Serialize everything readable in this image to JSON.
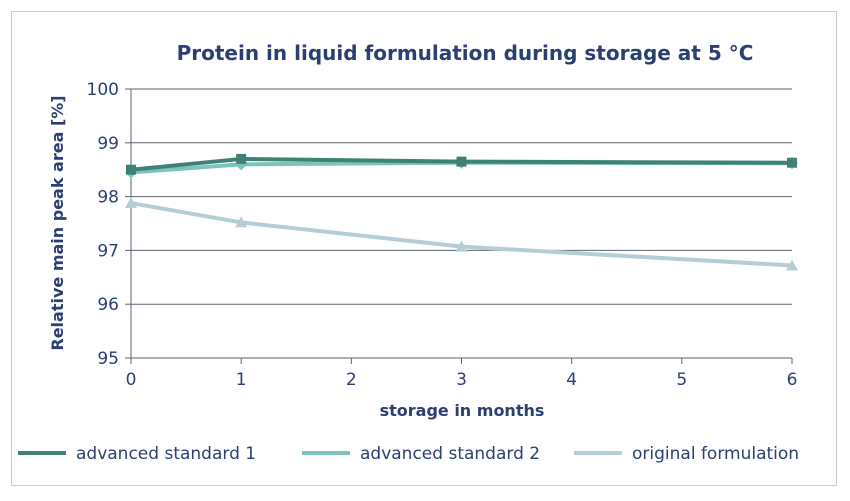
{
  "chart_data": {
    "type": "line",
    "title": "Protein in liquid formulation during storage at 5 °C",
    "xlabel": "storage in months",
    "ylabel": "Relative main peak area [%]",
    "xlim": [
      0,
      6
    ],
    "ylim": [
      95,
      100
    ],
    "x_ticks": [
      "0",
      "1",
      "2",
      "3",
      "4",
      "5",
      "6"
    ],
    "y_ticks": [
      "95",
      "96",
      "97",
      "98",
      "99",
      "100"
    ],
    "grid": "horizontal",
    "legend_position": "bottom",
    "series": [
      {
        "name": "advanced standard 1",
        "color": "#3f8275",
        "marker": "square",
        "x": [
          0,
          1,
          3,
          6
        ],
        "values": [
          98.5,
          98.7,
          98.65,
          98.63
        ]
      },
      {
        "name": "advanced standard 2",
        "color": "#7cc2bd",
        "marker": "diamond",
        "x": [
          0,
          1,
          3,
          6
        ],
        "values": [
          98.45,
          98.6,
          98.63,
          98.62
        ]
      },
      {
        "name": "original formulation",
        "color": "#b5cdd4",
        "marker": "triangle",
        "x": [
          0,
          1,
          3,
          6
        ],
        "values": [
          97.88,
          97.52,
          97.07,
          96.72
        ]
      }
    ]
  }
}
